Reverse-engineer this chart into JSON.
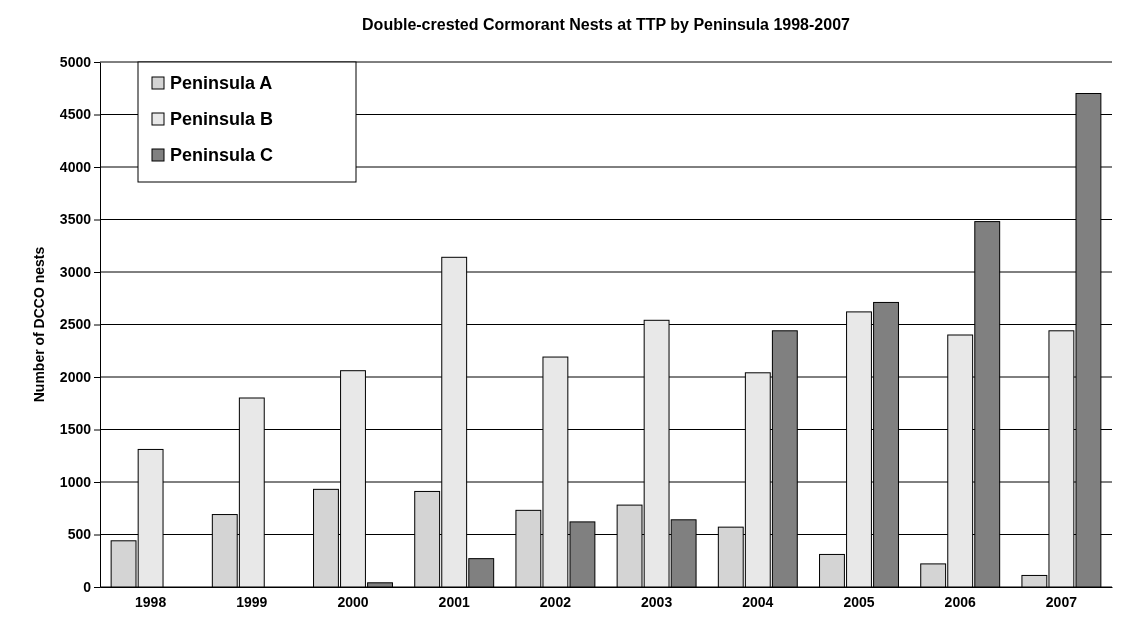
{
  "chart_data": {
    "type": "bar",
    "title": "Double-crested Cormorant Nests at TTP by Peninsula 1998-2007",
    "ylabel": "Number of DCCO nests",
    "categories": [
      "1998",
      "1999",
      "2000",
      "2001",
      "2002",
      "2003",
      "2004",
      "2005",
      "2006",
      "2007"
    ],
    "series": [
      {
        "name": "Peninsula A",
        "color": "#d4d4d4",
        "values": [
          440,
          690,
          930,
          910,
          730,
          780,
          570,
          310,
          220,
          110
        ]
      },
      {
        "name": "Peninsula B",
        "color": "#e8e8e8",
        "values": [
          1310,
          1800,
          2060,
          3140,
          2190,
          2540,
          2040,
          2620,
          2400,
          2440
        ]
      },
      {
        "name": "Peninsula C",
        "color": "#808080",
        "values": [
          0,
          0,
          40,
          270,
          620,
          640,
          2440,
          2710,
          3480,
          4700
        ]
      }
    ],
    "ylim": [
      0,
      5000
    ],
    "yticks": [
      0,
      500,
      1000,
      1500,
      2000,
      2500,
      3000,
      3500,
      4000,
      4500,
      5000
    ],
    "grid": "y",
    "legend": "top left"
  }
}
